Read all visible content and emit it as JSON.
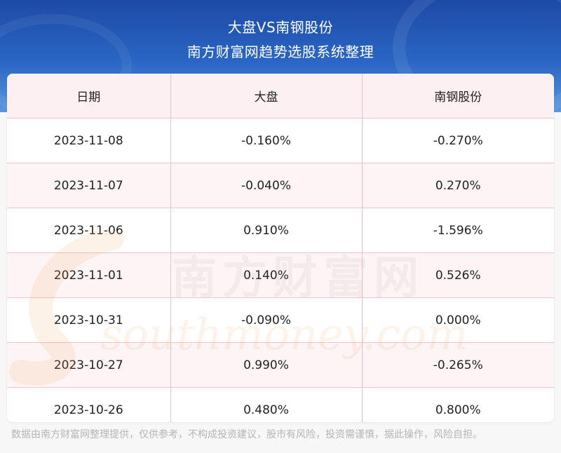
{
  "header": {
    "title": "大盘VS南钢股份",
    "subtitle": "南方财富网趋势选股系统整理"
  },
  "table": {
    "columns": [
      "日期",
      "大盘",
      "南钢股份"
    ],
    "rows": [
      [
        "2023-11-08",
        "-0.160%",
        "-0.270%"
      ],
      [
        "2023-11-07",
        "-0.040%",
        "0.270%"
      ],
      [
        "2023-11-06",
        "0.910%",
        "-1.596%"
      ],
      [
        "2023-11-01",
        "0.140%",
        "0.526%"
      ],
      [
        "2023-10-31",
        "-0.090%",
        "0.000%"
      ],
      [
        "2023-10-27",
        "0.990%",
        "-0.265%"
      ],
      [
        "2023-10-26",
        "0.480%",
        "0.800%"
      ]
    ]
  },
  "watermark": {
    "cn": "南方财富网",
    "en": "southmoney.com"
  },
  "footer": {
    "disclaimer": "数据由南方财富网整理提供，仅供参考，不构成投资建议，股市有风险，投资需谨慎，据此操作，风险自担。"
  },
  "colors": {
    "banner": "#2a66c4",
    "header_row": "#fdf0f2",
    "grid_line": "#e9c4cb",
    "stripe": "#fdf4f5",
    "watermark_orange": "#f3a35a"
  }
}
